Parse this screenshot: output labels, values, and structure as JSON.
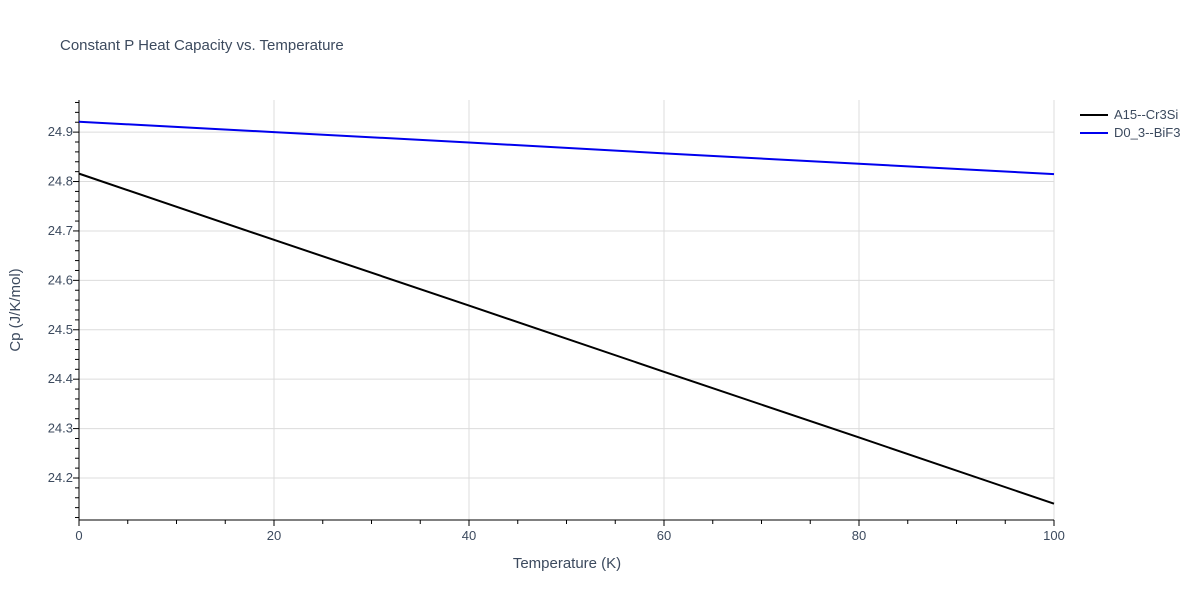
{
  "chart_data": {
    "type": "line",
    "title": "Constant P Heat Capacity vs. Temperature",
    "xlabel": "Temperature (K)",
    "ylabel": "Cp (J/K/mol)",
    "xlim": [
      0,
      100
    ],
    "ylim": [
      24.115,
      24.965
    ],
    "xticks": [
      0,
      20,
      40,
      60,
      80,
      100
    ],
    "yticks": [
      24.2,
      24.3,
      24.4,
      24.5,
      24.6,
      24.7,
      24.8,
      24.9
    ],
    "grid": true,
    "legend_position": "top-right",
    "series": [
      {
        "name": "A15--Cr3Si",
        "color": "#000000",
        "x": [
          0,
          20,
          40,
          60,
          80,
          100
        ],
        "y": [
          24.816,
          24.682,
          24.549,
          24.415,
          24.282,
          24.148
        ]
      },
      {
        "name": "D0_3--BiF3",
        "color": "#0000ee",
        "x": [
          0,
          20,
          40,
          60,
          80,
          100
        ],
        "y": [
          24.921,
          24.9,
          24.879,
          24.857,
          24.836,
          24.815
        ]
      }
    ]
  }
}
